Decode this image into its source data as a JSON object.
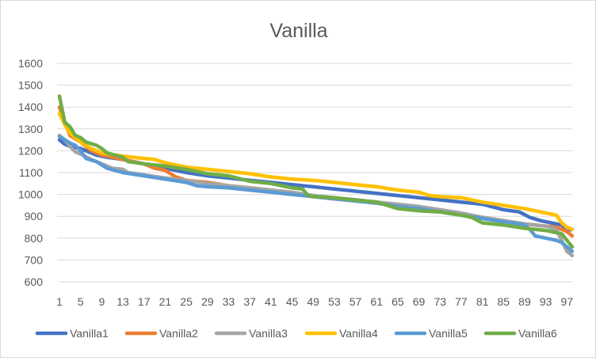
{
  "chart_data": {
    "type": "line",
    "title": "Vanilla",
    "xlabel": "",
    "ylabel": "",
    "ylim": [
      600,
      1600
    ],
    "yticks": [
      600,
      700,
      800,
      900,
      1000,
      1100,
      1200,
      1300,
      1400,
      1500,
      1600
    ],
    "xlim": [
      1,
      98
    ],
    "xticks": [
      1,
      5,
      9,
      13,
      17,
      21,
      25,
      29,
      33,
      37,
      41,
      45,
      49,
      53,
      57,
      61,
      65,
      69,
      73,
      77,
      81,
      85,
      89,
      93,
      97
    ],
    "grid": true,
    "legend": "bottom",
    "series": [
      {
        "name": "Vanilla1",
        "color": "#4472C4",
        "points": [
          [
            1,
            1250
          ],
          [
            2,
            1230
          ],
          [
            3,
            1220
          ],
          [
            4,
            1215
          ],
          [
            5,
            1210
          ],
          [
            6,
            1200
          ],
          [
            8,
            1180
          ],
          [
            10,
            1170
          ],
          [
            13,
            1160
          ],
          [
            20,
            1125
          ],
          [
            25,
            1100
          ],
          [
            29,
            1085
          ],
          [
            33,
            1075
          ],
          [
            37,
            1065
          ],
          [
            41,
            1055
          ],
          [
            45,
            1045
          ],
          [
            49,
            1035
          ],
          [
            53,
            1025
          ],
          [
            57,
            1015
          ],
          [
            61,
            1005
          ],
          [
            65,
            995
          ],
          [
            69,
            985
          ],
          [
            73,
            975
          ],
          [
            77,
            965
          ],
          [
            81,
            955
          ],
          [
            85,
            930
          ],
          [
            88,
            920
          ],
          [
            90,
            895
          ],
          [
            92,
            880
          ],
          [
            94,
            870
          ],
          [
            96,
            860
          ],
          [
            97,
            835
          ],
          [
            98,
            840
          ]
        ]
      },
      {
        "name": "Vanilla2",
        "color": "#ED7D31",
        "points": [
          [
            1,
            1400
          ],
          [
            2,
            1330
          ],
          [
            3,
            1270
          ],
          [
            5,
            1240
          ],
          [
            7,
            1200
          ],
          [
            9,
            1180
          ],
          [
            13,
            1160
          ],
          [
            17,
            1140
          ],
          [
            19,
            1120
          ],
          [
            21,
            1110
          ],
          [
            23,
            1080
          ],
          [
            25,
            1065
          ],
          [
            29,
            1055
          ],
          [
            33,
            1040
          ],
          [
            37,
            1030
          ],
          [
            41,
            1020
          ],
          [
            45,
            1005
          ],
          [
            49,
            990
          ],
          [
            53,
            980
          ],
          [
            57,
            970
          ],
          [
            61,
            965
          ],
          [
            65,
            950
          ],
          [
            69,
            940
          ],
          [
            73,
            925
          ],
          [
            77,
            910
          ],
          [
            81,
            895
          ],
          [
            85,
            880
          ],
          [
            89,
            865
          ],
          [
            93,
            855
          ],
          [
            95,
            850
          ],
          [
            97,
            830
          ],
          [
            98,
            810
          ]
        ]
      },
      {
        "name": "Vanilla3",
        "color": "#A5A5A5",
        "points": [
          [
            1,
            1270
          ],
          [
            2,
            1250
          ],
          [
            3,
            1220
          ],
          [
            4,
            1195
          ],
          [
            5,
            1185
          ],
          [
            7,
            1160
          ],
          [
            9,
            1140
          ],
          [
            11,
            1120
          ],
          [
            13,
            1115
          ],
          [
            14,
            1100
          ],
          [
            17,
            1090
          ],
          [
            21,
            1075
          ],
          [
            25,
            1065
          ],
          [
            29,
            1050
          ],
          [
            33,
            1040
          ],
          [
            37,
            1030
          ],
          [
            41,
            1020
          ],
          [
            45,
            1010
          ],
          [
            49,
            995
          ],
          [
            53,
            985
          ],
          [
            57,
            975
          ],
          [
            61,
            965
          ],
          [
            65,
            955
          ],
          [
            69,
            945
          ],
          [
            73,
            930
          ],
          [
            77,
            915
          ],
          [
            81,
            895
          ],
          [
            85,
            880
          ],
          [
            89,
            865
          ],
          [
            91,
            860
          ],
          [
            93,
            855
          ],
          [
            95,
            840
          ],
          [
            96,
            790
          ],
          [
            97,
            740
          ],
          [
            98,
            720
          ]
        ]
      },
      {
        "name": "Vanilla4",
        "color": "#FFC000",
        "points": [
          [
            1,
            1370
          ],
          [
            2,
            1320
          ],
          [
            3,
            1280
          ],
          [
            5,
            1240
          ],
          [
            7,
            1210
          ],
          [
            9,
            1190
          ],
          [
            13,
            1175
          ],
          [
            17,
            1165
          ],
          [
            19,
            1160
          ],
          [
            21,
            1145
          ],
          [
            25,
            1125
          ],
          [
            29,
            1115
          ],
          [
            33,
            1105
          ],
          [
            37,
            1095
          ],
          [
            41,
            1080
          ],
          [
            45,
            1070
          ],
          [
            49,
            1065
          ],
          [
            53,
            1055
          ],
          [
            57,
            1045
          ],
          [
            61,
            1035
          ],
          [
            65,
            1020
          ],
          [
            69,
            1010
          ],
          [
            71,
            995
          ],
          [
            73,
            990
          ],
          [
            77,
            985
          ],
          [
            81,
            965
          ],
          [
            85,
            950
          ],
          [
            89,
            935
          ],
          [
            93,
            915
          ],
          [
            95,
            905
          ],
          [
            96,
            870
          ],
          [
            97,
            850
          ],
          [
            98,
            840
          ]
        ]
      },
      {
        "name": "Vanilla5",
        "color": "#5B9BD5",
        "points": [
          [
            1,
            1265
          ],
          [
            2,
            1250
          ],
          [
            3,
            1235
          ],
          [
            4,
            1225
          ],
          [
            5,
            1200
          ],
          [
            6,
            1165
          ],
          [
            8,
            1150
          ],
          [
            10,
            1120
          ],
          [
            13,
            1100
          ],
          [
            17,
            1085
          ],
          [
            21,
            1070
          ],
          [
            25,
            1055
          ],
          [
            27,
            1040
          ],
          [
            29,
            1035
          ],
          [
            33,
            1030
          ],
          [
            37,
            1020
          ],
          [
            41,
            1010
          ],
          [
            45,
            1000
          ],
          [
            49,
            990
          ],
          [
            53,
            980
          ],
          [
            57,
            970
          ],
          [
            61,
            960
          ],
          [
            65,
            945
          ],
          [
            69,
            935
          ],
          [
            73,
            920
          ],
          [
            77,
            905
          ],
          [
            81,
            890
          ],
          [
            85,
            875
          ],
          [
            89,
            860
          ],
          [
            90,
            840
          ],
          [
            91,
            810
          ],
          [
            93,
            800
          ],
          [
            95,
            790
          ],
          [
            96,
            780
          ],
          [
            97,
            760
          ],
          [
            98,
            740
          ]
        ]
      },
      {
        "name": "Vanilla6",
        "color": "#70AD47",
        "points": [
          [
            1,
            1450
          ],
          [
            2,
            1330
          ],
          [
            3,
            1310
          ],
          [
            4,
            1270
          ],
          [
            5,
            1260
          ],
          [
            6,
            1240
          ],
          [
            8,
            1225
          ],
          [
            9,
            1210
          ],
          [
            10,
            1190
          ],
          [
            13,
            1170
          ],
          [
            14,
            1150
          ],
          [
            17,
            1140
          ],
          [
            21,
            1130
          ],
          [
            25,
            1115
          ],
          [
            29,
            1095
          ],
          [
            33,
            1085
          ],
          [
            37,
            1060
          ],
          [
            41,
            1050
          ],
          [
            45,
            1030
          ],
          [
            47,
            1025
          ],
          [
            48,
            995
          ],
          [
            49,
            990
          ],
          [
            53,
            985
          ],
          [
            57,
            975
          ],
          [
            61,
            965
          ],
          [
            63,
            950
          ],
          [
            65,
            935
          ],
          [
            69,
            925
          ],
          [
            73,
            920
          ],
          [
            77,
            905
          ],
          [
            79,
            895
          ],
          [
            81,
            870
          ],
          [
            85,
            860
          ],
          [
            89,
            845
          ],
          [
            91,
            840
          ],
          [
            93,
            835
          ],
          [
            95,
            825
          ],
          [
            96,
            820
          ],
          [
            97,
            790
          ],
          [
            98,
            760
          ]
        ]
      }
    ]
  }
}
